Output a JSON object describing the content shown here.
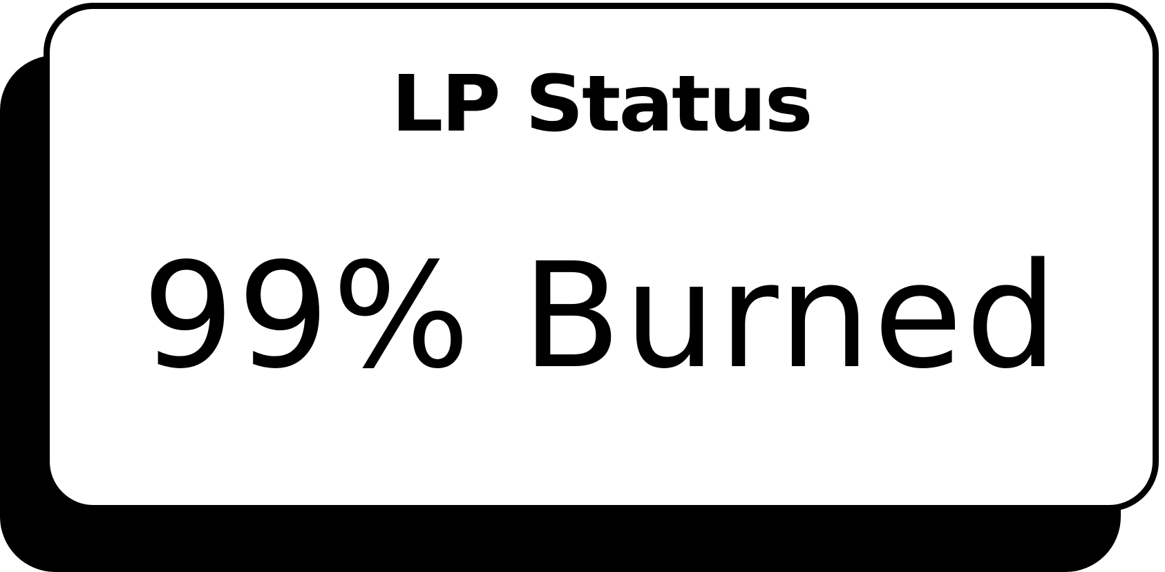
{
  "status_card": {
    "title": "LP Status",
    "value": "99% Burned"
  },
  "colors": {
    "background": "#ffffff",
    "border": "#000000",
    "shadow": "#000000",
    "text": "#000000"
  }
}
